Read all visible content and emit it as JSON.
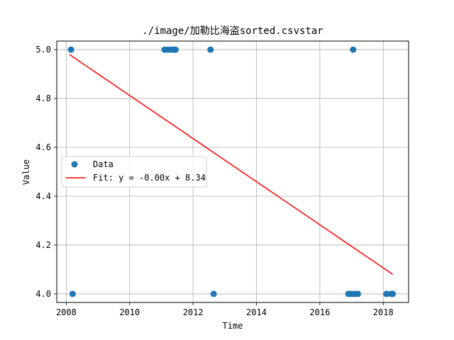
{
  "chart_data": {
    "type": "scatter",
    "title": "./image/加勒比海盗sorted.csvstar",
    "xlabel": "Time",
    "ylabel": "Value",
    "xlim": [
      2007.7,
      2018.8
    ],
    "ylim": [
      3.965,
      5.035
    ],
    "grid": true,
    "legend_position": "center-left",
    "x_ticks": [
      "2008",
      "2010",
      "2012",
      "2014",
      "2016",
      "2018"
    ],
    "x_tick_values": [
      2008,
      2010,
      2012,
      2014,
      2016,
      2018
    ],
    "y_ticks": [
      "4.0",
      "4.2",
      "4.4",
      "4.6",
      "4.8",
      "5.0"
    ],
    "y_tick_values": [
      4.0,
      4.2,
      4.4,
      4.6,
      4.8,
      5.0
    ],
    "series": [
      {
        "name": "Data",
        "kind": "scatter",
        "color": "#1f77b4",
        "points": [
          {
            "x": 2008.15,
            "y": 5.0
          },
          {
            "x": 2008.2,
            "y": 4.0
          },
          {
            "x": 2011.1,
            "y": 5.0
          },
          {
            "x": 2011.2,
            "y": 5.0
          },
          {
            "x": 2011.3,
            "y": 5.0
          },
          {
            "x": 2011.4,
            "y": 5.0
          },
          {
            "x": 2011.45,
            "y": 5.0
          },
          {
            "x": 2012.55,
            "y": 5.0
          },
          {
            "x": 2012.65,
            "y": 4.0
          },
          {
            "x": 2016.9,
            "y": 4.0
          },
          {
            "x": 2017.0,
            "y": 4.0
          },
          {
            "x": 2017.05,
            "y": 5.0
          },
          {
            "x": 2017.1,
            "y": 4.0
          },
          {
            "x": 2017.2,
            "y": 4.0
          },
          {
            "x": 2018.1,
            "y": 4.0
          },
          {
            "x": 2018.25,
            "y": 4.0
          },
          {
            "x": 2018.3,
            "y": 4.0
          }
        ]
      },
      {
        "name": "Fit: y = -0.00x + 8.34",
        "kind": "line",
        "color": "#ff0000",
        "points": [
          {
            "x": 2008.1,
            "y": 4.98
          },
          {
            "x": 2018.3,
            "y": 4.08
          }
        ]
      }
    ]
  }
}
